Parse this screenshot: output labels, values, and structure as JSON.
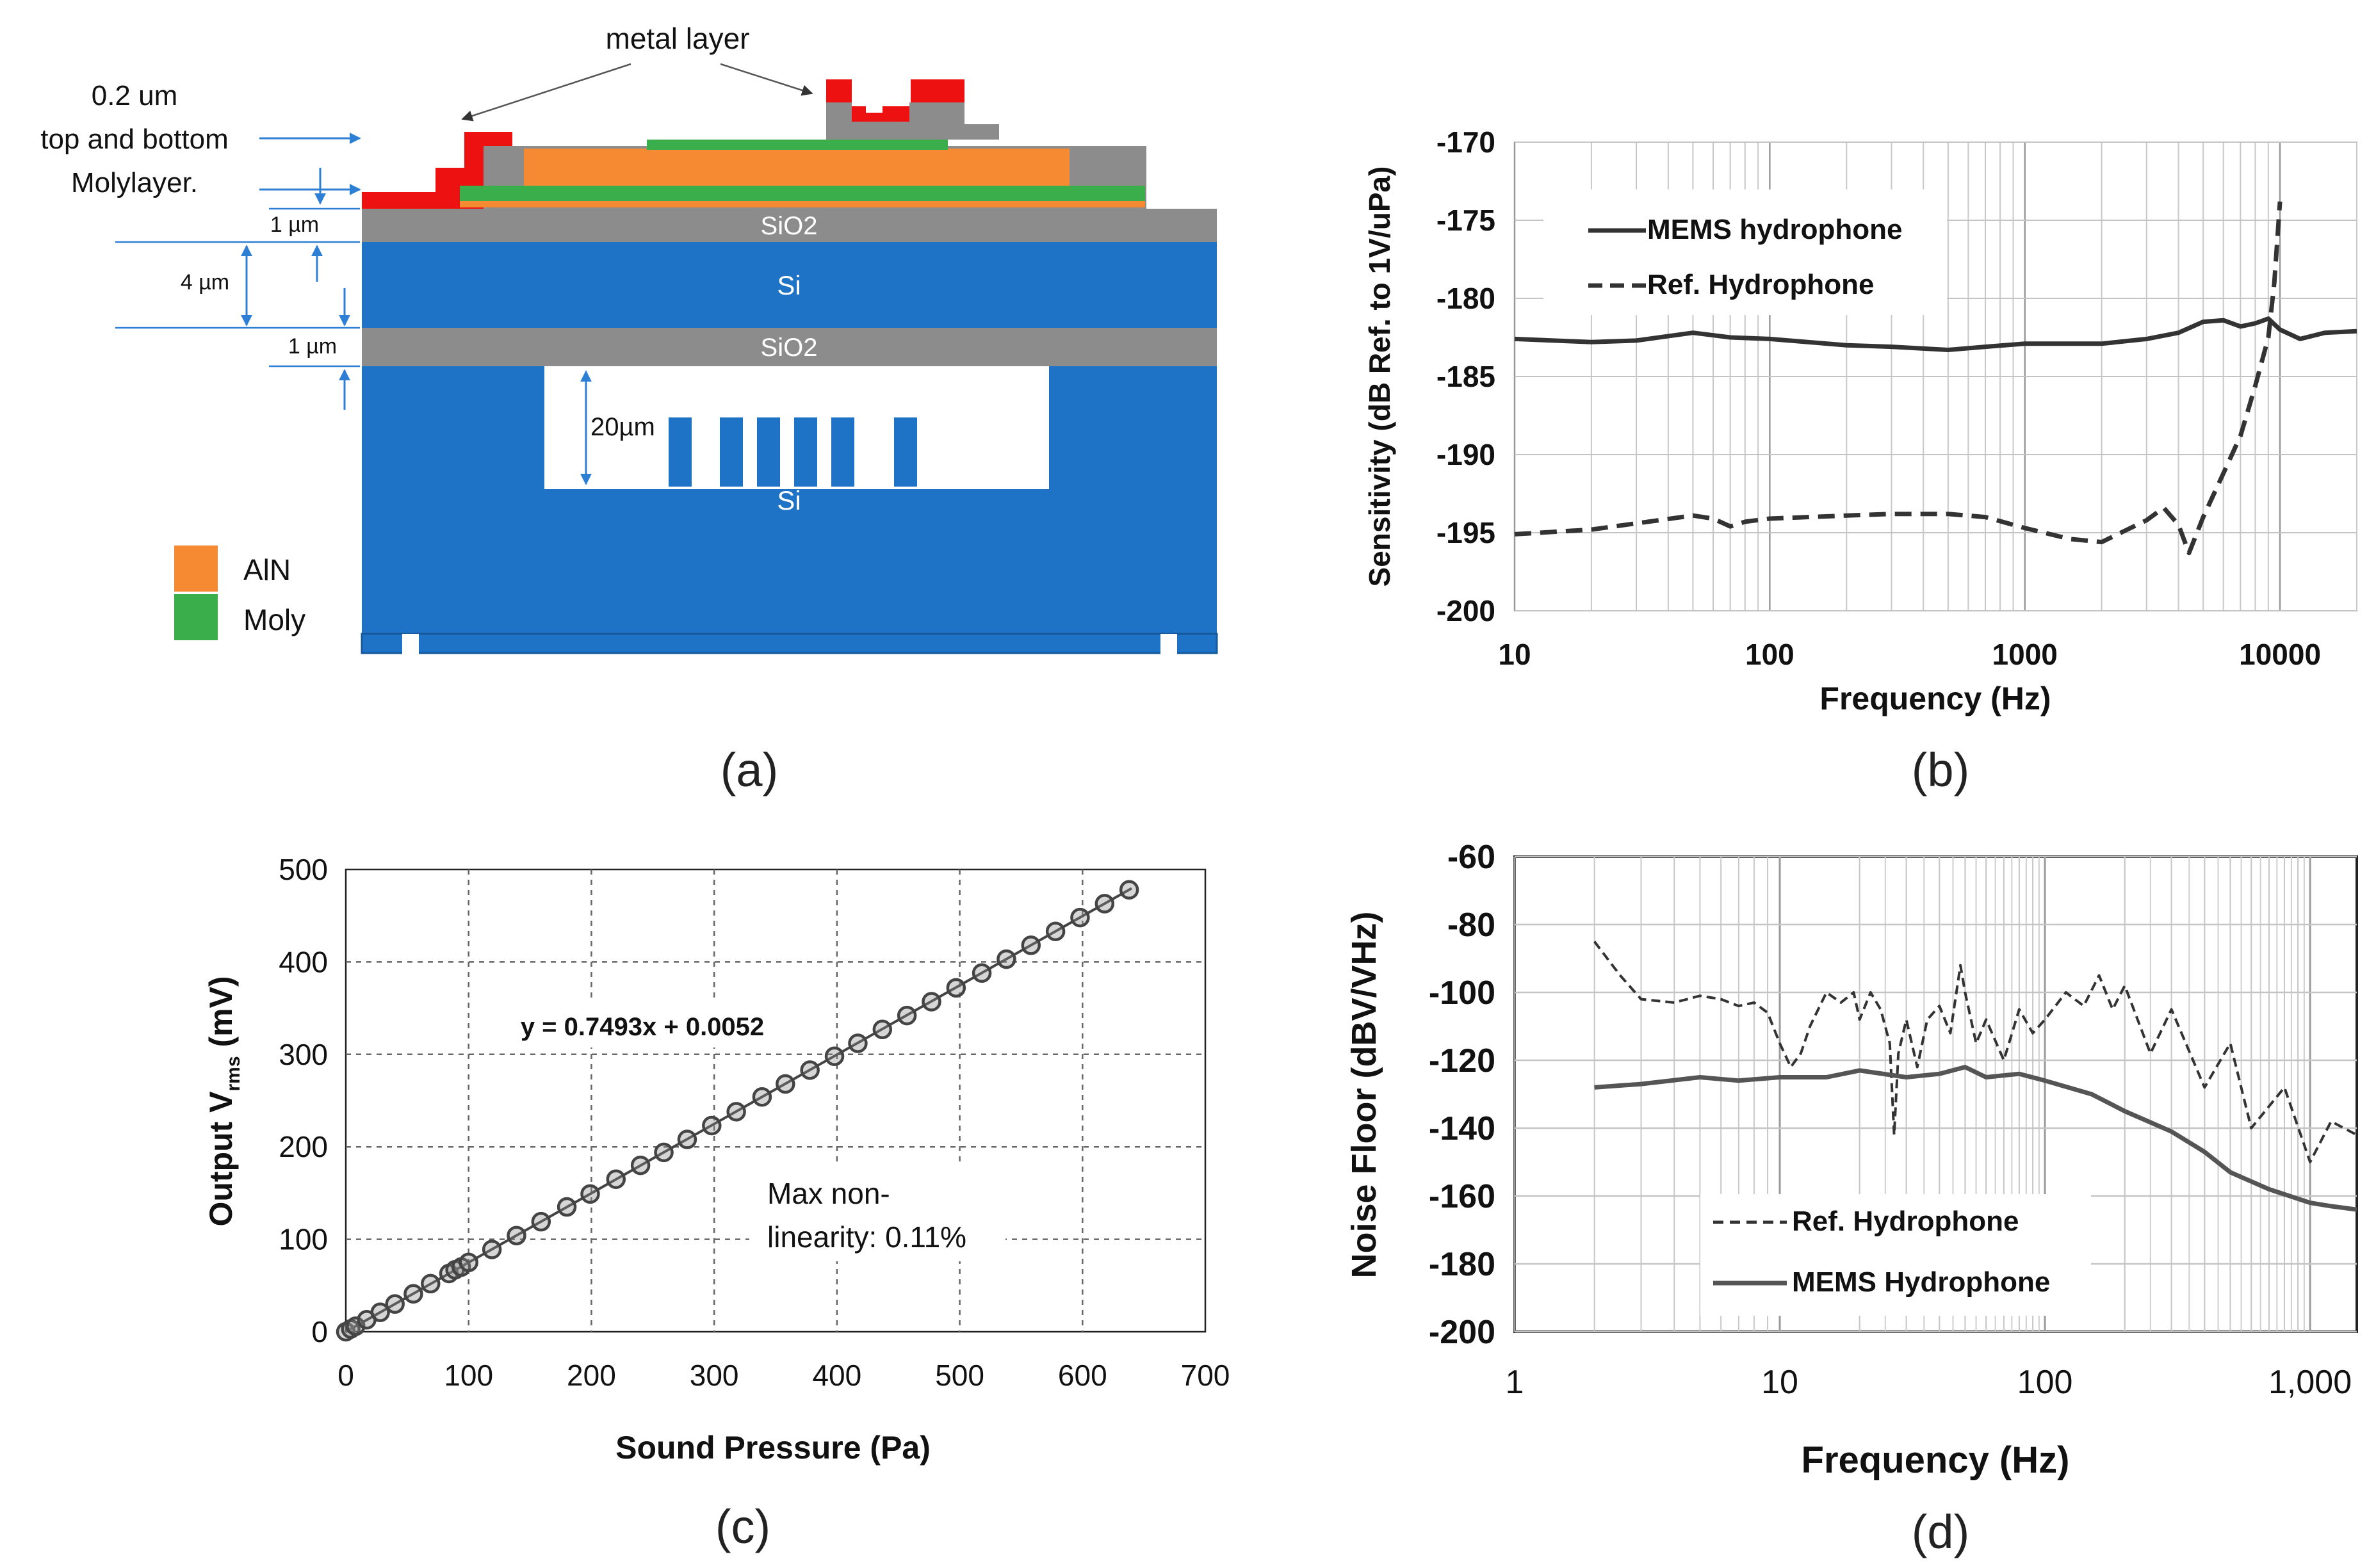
{
  "panel_a": {
    "caption": "(a)",
    "metal_label": "metal layer",
    "moly_note_lines": [
      "0.2 um",
      "top and bottom",
      "Molylayer."
    ],
    "dim_top_sio2": "1 µm",
    "dim_si": "4 µm",
    "dim_bottom_sio2": "1 µm",
    "dim_cavity": "20µm",
    "layer_top_sio2": "SiO2",
    "layer_si": "Si",
    "layer_bottom_sio2": "SiO2",
    "layer_substrate": "Si",
    "legend": [
      {
        "label": "AlN",
        "color": "#f58a33"
      },
      {
        "label": "Moly",
        "color": "#3aae4a"
      }
    ],
    "colors": {
      "silicon": "#1f73c6",
      "oxide": "#8c8c8c",
      "metal": "#ee1111",
      "aln": "#f58a33",
      "moly": "#3aae4a"
    }
  },
  "chart_data": [
    {
      "type": "line",
      "panel": "(b)",
      "caption": "(b)",
      "xlabel": "Frequency (Hz)",
      "ylabel": "Sensitivity (dB Ref. to 1V/uPa)",
      "xscale": "log",
      "xlim": [
        10,
        20000
      ],
      "ylim": [
        -200,
        -170
      ],
      "xticks": [
        10,
        100,
        1000,
        10000
      ],
      "xtick_labels": [
        "10",
        "100",
        "1000",
        "10000"
      ],
      "yticks": [
        -170,
        -175,
        -180,
        -185,
        -190,
        -195,
        -200
      ],
      "ytick_labels": [
        "-170",
        "-175",
        "-180",
        "-185",
        "-190",
        "-195",
        "-200"
      ],
      "legend": "top-left",
      "grid": true,
      "series": [
        {
          "name": "MEMS hydrophone",
          "style": "solid",
          "x": [
            10,
            20,
            30,
            50,
            70,
            100,
            200,
            300,
            500,
            700,
            1000,
            2000,
            3000,
            4000,
            5000,
            6000,
            7000,
            8000,
            9000,
            10000,
            12000,
            15000,
            20000
          ],
          "y": [
            -182.6,
            -182.8,
            -182.7,
            -182.2,
            -182.5,
            -182.6,
            -183.0,
            -183.1,
            -183.3,
            -183.1,
            -182.9,
            -182.9,
            -182.6,
            -182.2,
            -181.5,
            -181.4,
            -181.8,
            -181.6,
            -181.3,
            -182.0,
            -182.6,
            -182.2,
            -182.1
          ]
        },
        {
          "name": "Ref. Hydrophone",
          "style": "dashed",
          "x": [
            10,
            20,
            30,
            50,
            60,
            70,
            80,
            100,
            200,
            300,
            500,
            700,
            1000,
            1500,
            2000,
            3000,
            3500,
            4000,
            4400,
            5000,
            6000,
            7000,
            8000,
            9000,
            9500,
            10000
          ],
          "y": [
            -195.1,
            -194.8,
            -194.4,
            -193.9,
            -194.1,
            -194.6,
            -194.3,
            -194.1,
            -193.9,
            -193.8,
            -193.8,
            -194.0,
            -194.7,
            -195.4,
            -195.6,
            -194.2,
            -193.4,
            -194.5,
            -196.3,
            -194.0,
            -191.2,
            -188.8,
            -185.6,
            -182.5,
            -179.0,
            -173.8
          ]
        }
      ]
    },
    {
      "type": "scatter",
      "panel": "(c)",
      "caption": "(c)",
      "xlabel": "Sound Pressure (Pa)",
      "ylabel": "Output V",
      "ylabel_sub": "rms",
      "ylabel_unit": " (mV)",
      "xlim": [
        0,
        700
      ],
      "ylim": [
        0,
        500
      ],
      "xticks": [
        0,
        100,
        200,
        300,
        400,
        500,
        600,
        700
      ],
      "xtick_labels": [
        "0",
        "100",
        "200",
        "300",
        "400",
        "500",
        "600",
        "700"
      ],
      "yticks": [
        0,
        100,
        200,
        300,
        400,
        500
      ],
      "ytick_labels": [
        "0",
        "100",
        "200",
        "300",
        "400",
        "500"
      ],
      "grid": true,
      "equation": "y = 0.7493x + 0.0052",
      "annotation_lines": [
        "Max non-",
        "linearity: 0.11%"
      ],
      "fit": {
        "slope": 0.7493,
        "intercept": 0.0052
      },
      "x": [
        0,
        4,
        8,
        17,
        28,
        40,
        55,
        69,
        84,
        89,
        94,
        100,
        119,
        139,
        159,
        180,
        199,
        220,
        240,
        259,
        278,
        298,
        318,
        339,
        358,
        378,
        398,
        417,
        437,
        457,
        477,
        497,
        518,
        538,
        558,
        578,
        598,
        618,
        638
      ],
      "y": [
        0,
        3,
        6,
        13,
        21,
        30,
        41,
        52,
        63,
        67,
        70,
        75,
        89,
        104,
        119,
        135,
        149,
        165,
        180,
        194,
        208,
        223,
        238,
        254,
        268,
        283,
        298,
        312,
        327,
        342,
        357,
        372,
        388,
        403,
        418,
        433,
        448,
        463,
        478
      ]
    },
    {
      "type": "line",
      "panel": "(d)",
      "caption": "(d)",
      "xlabel": "Frequency (Hz)",
      "ylabel": "Noise Floor (dBV/VHz)",
      "xscale": "log",
      "xlim": [
        1,
        1500
      ],
      "ylim": [
        -200,
        -60
      ],
      "xticks": [
        1,
        10,
        100,
        1000
      ],
      "xtick_labels": [
        "1",
        "10",
        "100",
        "1,000"
      ],
      "yticks": [
        -60,
        -80,
        -100,
        -120,
        -140,
        -160,
        -180,
        -200
      ],
      "ytick_labels": [
        "-60",
        "-80",
        "-100",
        "-120",
        "-140",
        "-160",
        "-180",
        "-200"
      ],
      "legend": "bottom-center",
      "grid": true,
      "series": [
        {
          "name": "Ref. Hydrophone",
          "style": "dashed",
          "x": [
            2,
            2.5,
            3,
            4,
            5,
            6,
            7,
            8,
            9,
            10,
            11,
            12,
            13,
            15,
            17,
            19,
            20,
            22,
            24,
            26,
            27,
            28,
            30,
            33,
            36,
            40,
            44,
            48,
            50,
            55,
            60,
            70,
            80,
            90,
            100,
            120,
            140,
            160,
            180,
            200,
            250,
            300,
            400,
            500,
            600,
            800,
            1000,
            1200,
            1500
          ],
          "y": [
            -85,
            -95,
            -102,
            -103,
            -101,
            -102,
            -104,
            -103,
            -106,
            -115,
            -122,
            -118,
            -110,
            -100,
            -103,
            -100,
            -108,
            -100,
            -105,
            -115,
            -142,
            -118,
            -108,
            -122,
            -108,
            -104,
            -112,
            -92,
            -100,
            -115,
            -108,
            -120,
            -105,
            -112,
            -108,
            -100,
            -104,
            -95,
            -105,
            -98,
            -118,
            -105,
            -128,
            -115,
            -140,
            -128,
            -150,
            -138,
            -142
          ]
        },
        {
          "name": "MEMS Hydrophone",
          "style": "solid",
          "x": [
            2,
            3,
            5,
            7,
            10,
            15,
            20,
            30,
            40,
            50,
            60,
            80,
            100,
            150,
            200,
            300,
            400,
            500,
            700,
            1000,
            1200,
            1500
          ],
          "y": [
            -128,
            -127,
            -125,
            -126,
            -125,
            -125,
            -123,
            -125,
            -124,
            -122,
            -125,
            -124,
            -126,
            -130,
            -135,
            -141,
            -147,
            -153,
            -158,
            -162,
            -163,
            -164
          ]
        }
      ]
    }
  ]
}
